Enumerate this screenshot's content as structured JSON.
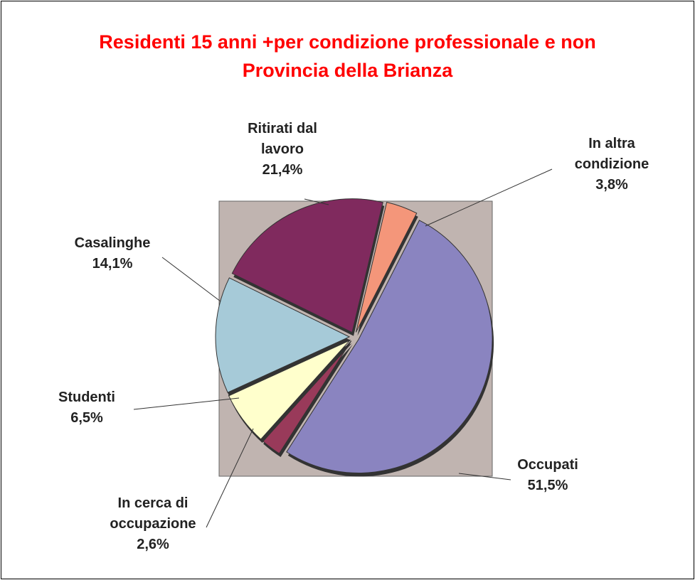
{
  "chart_data": {
    "type": "pie",
    "title": "Residenti 15 anni +per condizione professionale e non",
    "subtitle": "Provincia della Brianza",
    "categories": [
      "Occupati",
      "In cerca di occupazione",
      "Studenti",
      "Casalinghe",
      "Ritirati dal lavoro",
      "In altra condizione"
    ],
    "values": [
      51.5,
      2.6,
      6.5,
      14.1,
      21.4,
      3.8
    ],
    "value_labels": [
      "51,5%",
      "2,6%",
      "6,5%",
      "14,1%",
      "21,4%",
      "3,8%"
    ],
    "colors": [
      "#8a84c0",
      "#993a5a",
      "#ffffcc",
      "#a6cad8",
      "#802a5e",
      "#f4967a"
    ]
  }
}
